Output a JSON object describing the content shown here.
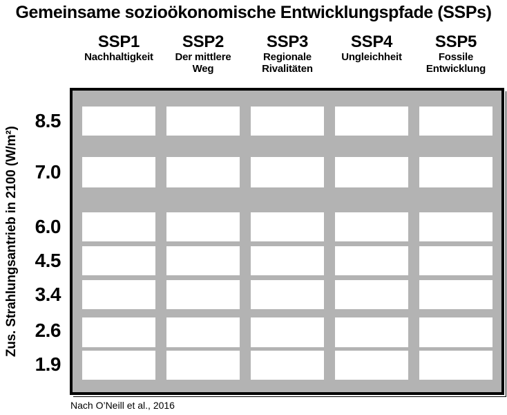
{
  "title": "Gemeinsame sozioökonomische Entwicklungspfade (SSPs)",
  "y_axis": {
    "label": "Zus. Strahlungsantrieb in 2100 (W/m²)"
  },
  "columns": [
    {
      "name": "SSP1",
      "subtitle": "Nachhaltigkeit"
    },
    {
      "name": "SSP2",
      "subtitle": "Der mittlere\nWeg"
    },
    {
      "name": "SSP3",
      "subtitle": "Regionale\nRivalitäten"
    },
    {
      "name": "SSP4",
      "subtitle": "Ungleichheit"
    },
    {
      "name": "SSP5",
      "subtitle": "Fossile\nEntwicklung"
    }
  ],
  "rows": [
    {
      "label": "8.5"
    },
    {
      "label": "7.0"
    },
    {
      "label": "6.0"
    },
    {
      "label": "4.5"
    },
    {
      "label": "3.4"
    },
    {
      "label": "2.6"
    },
    {
      "label": "1.9"
    }
  ],
  "attribution": "Nach O’Neill et al., 2016",
  "colors": {
    "matrix_background": "#b3b3b3",
    "cell_fill": "#ffffff",
    "frame": "#000000",
    "text": "#000000"
  },
  "chart_data": {
    "type": "table",
    "title": "Gemeinsame sozioökonomische Entwicklungspfade (SSPs)",
    "ylabel": "Zus. Strahlungsantrieb in 2100 (W/m²)",
    "columns": [
      "SSP1 Nachhaltigkeit",
      "SSP2 Der mittlere Weg",
      "SSP3 Regionale Rivalitäten",
      "SSP4 Ungleichheit",
      "SSP5 Fossile Entwicklung"
    ],
    "row_labels": [
      "8.5",
      "7.0",
      "6.0",
      "4.5",
      "3.4",
      "2.6",
      "1.9"
    ],
    "cells": [
      [
        "",
        "",
        "",
        "",
        ""
      ],
      [
        "",
        "",
        "",
        "",
        ""
      ],
      [
        "",
        "",
        "",
        "",
        ""
      ],
      [
        "",
        "",
        "",
        "",
        ""
      ],
      [
        "",
        "",
        "",
        "",
        ""
      ],
      [
        "",
        "",
        "",
        "",
        ""
      ],
      [
        "",
        "",
        "",
        "",
        ""
      ]
    ],
    "layout_hints": {
      "grid": "off",
      "cell_style": "empty white rectangles on gray matrix background",
      "row_spacing": "rows 8.5 and 7.0 separated by wide gaps; lower rows tightly spaced"
    },
    "source": "Nach O’Neill et al., 2016"
  }
}
